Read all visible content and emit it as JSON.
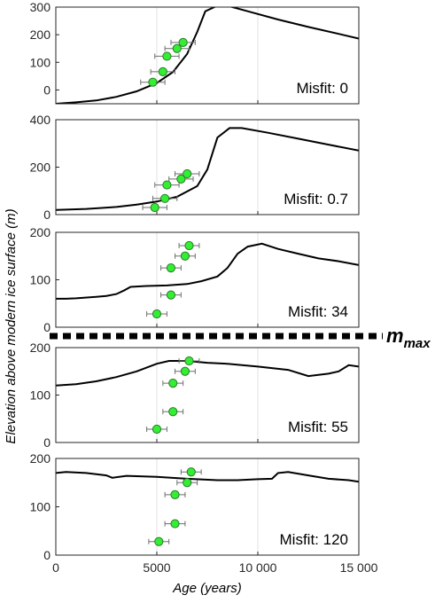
{
  "figure": {
    "xlabel": "Age (years)",
    "ylabel": "Elevation above modern ice surface (m)",
    "divider_label_main": "m",
    "divider_label_sub": "max",
    "x_ticks": [
      0,
      5000,
      10000,
      15000
    ],
    "x_tick_labels": [
      "0",
      "5000",
      "10 000",
      "15 000"
    ],
    "xlim": [
      0,
      15000
    ],
    "point_color": "#33ee33",
    "line_color": "#000000"
  },
  "chart_data": [
    {
      "type": "line",
      "misfit_label": "Misfit: 0",
      "ylim": [
        -50,
        300
      ],
      "y_ticks": [
        0,
        100,
        200,
        300
      ],
      "curve": [
        [
          0,
          -50
        ],
        [
          1000,
          -45
        ],
        [
          2000,
          -38
        ],
        [
          3000,
          -25
        ],
        [
          4000,
          -5
        ],
        [
          5000,
          25
        ],
        [
          5800,
          65
        ],
        [
          6500,
          130
        ],
        [
          7000,
          210
        ],
        [
          7400,
          285
        ],
        [
          8000,
          305
        ],
        [
          8600,
          303
        ],
        [
          9500,
          285
        ],
        [
          11000,
          255
        ],
        [
          12500,
          228
        ],
        [
          14000,
          203
        ],
        [
          15000,
          186
        ]
      ],
      "points": [
        {
          "age": 4800,
          "elev": 28,
          "err": 600
        },
        {
          "age": 5300,
          "elev": 66,
          "err": 600
        },
        {
          "age": 5500,
          "elev": 122,
          "err": 600
        },
        {
          "age": 6000,
          "elev": 150,
          "err": 600
        },
        {
          "age": 6300,
          "elev": 172,
          "err": 600
        }
      ]
    },
    {
      "type": "line",
      "misfit_label": "Misfit: 0.7",
      "ylim": [
        0,
        400
      ],
      "y_ticks": [
        0,
        200,
        400
      ],
      "curve": [
        [
          0,
          20
        ],
        [
          1500,
          24
        ],
        [
          3000,
          32
        ],
        [
          4000,
          42
        ],
        [
          5000,
          55
        ],
        [
          6000,
          75
        ],
        [
          7000,
          120
        ],
        [
          7500,
          190
        ],
        [
          8000,
          325
        ],
        [
          8600,
          365
        ],
        [
          9200,
          365
        ],
        [
          10500,
          345
        ],
        [
          12000,
          320
        ],
        [
          13500,
          295
        ],
        [
          15000,
          270
        ]
      ],
      "points": [
        {
          "age": 4900,
          "elev": 30,
          "err": 600
        },
        {
          "age": 5400,
          "elev": 68,
          "err": 600
        },
        {
          "age": 5500,
          "elev": 125,
          "err": 600
        },
        {
          "age": 6200,
          "elev": 150,
          "err": 600
        },
        {
          "age": 6500,
          "elev": 172,
          "err": 600
        }
      ]
    },
    {
      "type": "line",
      "misfit_label": "Misfit: 34",
      "ylim": [
        0,
        200
      ],
      "y_ticks": [
        0,
        100,
        200
      ],
      "curve": [
        [
          0,
          60
        ],
        [
          500,
          60
        ],
        [
          1000,
          61
        ],
        [
          2000,
          64
        ],
        [
          2500,
          66
        ],
        [
          3000,
          70
        ],
        [
          3400,
          78
        ],
        [
          3700,
          85
        ],
        [
          4500,
          87
        ],
        [
          5500,
          88
        ],
        [
          6500,
          91
        ],
        [
          7200,
          97
        ],
        [
          8000,
          107
        ],
        [
          8500,
          125
        ],
        [
          9000,
          155
        ],
        [
          9500,
          170
        ],
        [
          10200,
          176
        ],
        [
          11000,
          165
        ],
        [
          12000,
          155
        ],
        [
          13000,
          145
        ],
        [
          14000,
          139
        ],
        [
          15000,
          131
        ]
      ],
      "points": [
        {
          "age": 5000,
          "elev": 28,
          "err": 500
        },
        {
          "age": 5700,
          "elev": 68,
          "err": 500
        },
        {
          "age": 5700,
          "elev": 125,
          "err": 500
        },
        {
          "age": 6400,
          "elev": 150,
          "err": 500
        },
        {
          "age": 6600,
          "elev": 172,
          "err": 500
        }
      ]
    },
    {
      "type": "line",
      "misfit_label": "Misfit: 55",
      "ylim": [
        0,
        200
      ],
      "y_ticks": [
        0,
        100,
        200
      ],
      "curve": [
        [
          0,
          120
        ],
        [
          1000,
          123
        ],
        [
          2000,
          129
        ],
        [
          3000,
          138
        ],
        [
          4000,
          150
        ],
        [
          5000,
          166
        ],
        [
          5600,
          172
        ],
        [
          6500,
          172
        ],
        [
          7500,
          168
        ],
        [
          8500,
          166
        ],
        [
          10000,
          160
        ],
        [
          11500,
          153
        ],
        [
          12500,
          140
        ],
        [
          13500,
          145
        ],
        [
          14000,
          150
        ],
        [
          14500,
          163
        ],
        [
          15000,
          160
        ]
      ],
      "points": [
        {
          "age": 5000,
          "elev": 28,
          "err": 500
        },
        {
          "age": 5800,
          "elev": 65,
          "err": 500
        },
        {
          "age": 5800,
          "elev": 125,
          "err": 500
        },
        {
          "age": 6400,
          "elev": 150,
          "err": 500
        },
        {
          "age": 6600,
          "elev": 172,
          "err": 500
        }
      ]
    },
    {
      "type": "line",
      "misfit_label": "Misfit: 120",
      "ylim": [
        0,
        200
      ],
      "y_ticks": [
        0,
        100,
        200
      ],
      "curve": [
        [
          0,
          170
        ],
        [
          500,
          172
        ],
        [
          1500,
          170
        ],
        [
          2500,
          165
        ],
        [
          2800,
          160
        ],
        [
          3500,
          164
        ],
        [
          5000,
          162
        ],
        [
          6500,
          158
        ],
        [
          8000,
          155
        ],
        [
          9000,
          155
        ],
        [
          10000,
          157
        ],
        [
          10700,
          158
        ],
        [
          11000,
          170
        ],
        [
          11500,
          172
        ],
        [
          12500,
          165
        ],
        [
          13500,
          158
        ],
        [
          14500,
          155
        ],
        [
          15000,
          152
        ]
      ],
      "points": [
        {
          "age": 5100,
          "elev": 28,
          "err": 500
        },
        {
          "age": 5900,
          "elev": 65,
          "err": 500
        },
        {
          "age": 5900,
          "elev": 125,
          "err": 500
        },
        {
          "age": 6500,
          "elev": 150,
          "err": 500
        },
        {
          "age": 6700,
          "elev": 172,
          "err": 500
        }
      ]
    }
  ]
}
